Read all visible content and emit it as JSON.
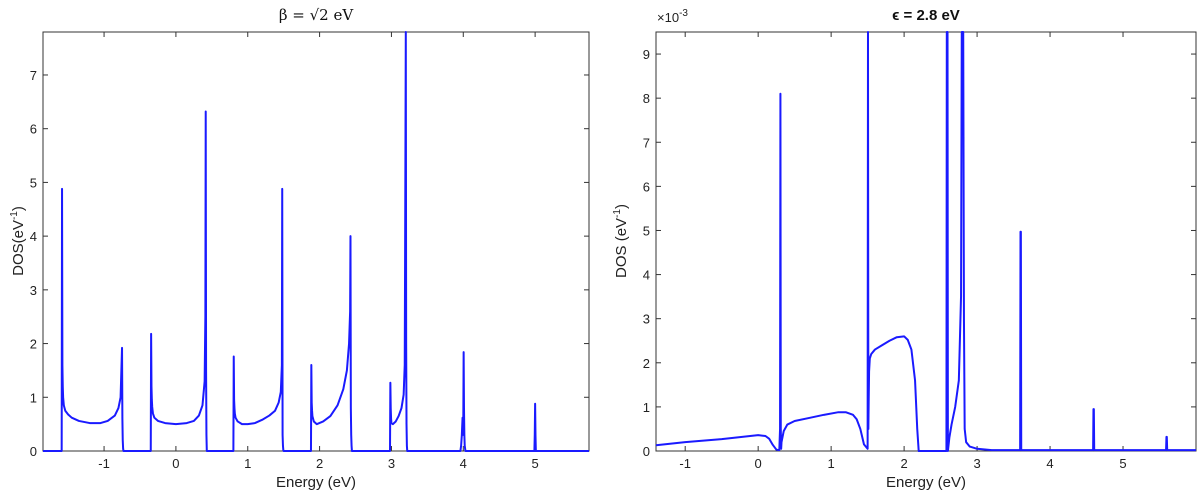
{
  "chart_data": [
    {
      "type": "line",
      "title": "β = √2 eV",
      "xlabel": "Energy (eV)",
      "ylabel_main": "DOS(eV",
      "ylabel_sup": "-1",
      "ylabel_end": ")",
      "xlim": [
        -1.85,
        5.75
      ],
      "ylim": [
        0,
        7.8
      ],
      "xticks": [
        -1,
        0,
        1,
        2,
        3,
        4,
        5
      ],
      "yticks": [
        0,
        1,
        2,
        3,
        4,
        5,
        6,
        7
      ],
      "color": "#1a1aff",
      "series": [
        {
          "x": [
            -1.85,
            -1.59,
            -1.585,
            -1.58,
            -1.575,
            -1.57,
            -1.56,
            -1.54,
            -1.5,
            -1.45,
            -1.35,
            -1.2,
            -1.05,
            -0.95,
            -0.85,
            -0.8,
            -0.77,
            -0.75,
            -0.745,
            -0.74,
            -0.735,
            -0.73,
            -0.35,
            -0.345,
            -0.34,
            -0.335,
            -0.33,
            -0.32,
            -0.3,
            -0.25,
            -0.15,
            0.0,
            0.15,
            0.25,
            0.32,
            0.37,
            0.4,
            0.41,
            0.415,
            0.42,
            0.425,
            0.43,
            0.8,
            0.805,
            0.81,
            0.815,
            0.82,
            0.83,
            0.86,
            0.92,
            1.0,
            1.1,
            1.2,
            1.3,
            1.38,
            1.43,
            1.46,
            1.475,
            1.48,
            1.485,
            1.49,
            1.495,
            1.5,
            1.88,
            1.885,
            1.89,
            1.895,
            1.9,
            1.92,
            1.96,
            2.05,
            2.15,
            2.25,
            2.33,
            2.38,
            2.41,
            2.425,
            2.43,
            2.435,
            2.44,
            2.445,
            2.45,
            2.98,
            2.985,
            2.99,
            2.995,
            3.0,
            3.02,
            3.06,
            3.1,
            3.14,
            3.17,
            3.185,
            3.19,
            3.2,
            3.205,
            3.21,
            3.215,
            3.22,
            3.96,
            3.97,
            3.98,
            3.99,
            3.995,
            4.0,
            4.005,
            4.01,
            4.015,
            4.02,
            4.03,
            4.99,
            4.995,
            5.0,
            5.005,
            5.01,
            5.75
          ],
          "y": [
            0,
            0,
            4.88,
            1.6,
            1.2,
            1.0,
            0.85,
            0.75,
            0.68,
            0.62,
            0.56,
            0.52,
            0.52,
            0.56,
            0.66,
            0.8,
            1.0,
            1.92,
            0.6,
            0.2,
            0.05,
            0,
            0,
            2.18,
            1.2,
            0.95,
            0.82,
            0.7,
            0.62,
            0.56,
            0.52,
            0.5,
            0.52,
            0.56,
            0.66,
            0.85,
            1.3,
            2.5,
            6.32,
            1.5,
            0.3,
            0,
            0,
            1.76,
            0.95,
            0.8,
            0.7,
            0.62,
            0.55,
            0.5,
            0.5,
            0.52,
            0.58,
            0.66,
            0.75,
            0.9,
            1.1,
            1.6,
            4.88,
            0.3,
            0.1,
            0.02,
            0,
            0,
            1.6,
            0.9,
            0.75,
            0.65,
            0.55,
            0.5,
            0.55,
            0.65,
            0.85,
            1.15,
            1.5,
            2.0,
            2.6,
            4.0,
            0.8,
            0.3,
            0.1,
            0,
            0,
            1.27,
            0.8,
            0.6,
            0.52,
            0.5,
            0.55,
            0.65,
            0.8,
            1.05,
            1.6,
            3.5,
            7.8,
            2.0,
            0.5,
            0.1,
            0,
            0,
            0.1,
            0.3,
            0.62,
            0.3,
            0.5,
            1.84,
            0.8,
            0.3,
            0.1,
            0,
            0,
            0.3,
            0.88,
            0.3,
            0,
            0
          ]
        }
      ]
    },
    {
      "type": "line",
      "title": "ϵ = 2.8 eV",
      "xlabel": "Energy (eV)",
      "ylabel_main": "DOS (eV",
      "ylabel_sup": "-1",
      "ylabel_end": ")",
      "scale_main": "×10",
      "scale_sup": "-3",
      "xlim": [
        -1.4,
        6.0
      ],
      "ylim": [
        0,
        9.5
      ],
      "xticks": [
        -1,
        0,
        1,
        2,
        3,
        4,
        5
      ],
      "yticks": [
        0,
        1,
        2,
        3,
        4,
        5,
        6,
        7,
        8,
        9
      ],
      "color": "#1a1aff",
      "series": [
        {
          "x": [
            -1.4,
            -1.0,
            -0.5,
            0.0,
            0.1,
            0.15,
            0.2,
            0.25,
            0.29,
            0.3,
            0.305,
            0.31,
            0.315,
            0.32,
            0.35,
            0.4,
            0.5,
            0.7,
            0.9,
            1.1,
            1.2,
            1.3,
            1.35,
            1.4,
            1.45,
            1.5,
            1.505,
            1.51,
            1.515,
            1.52,
            1.53,
            1.55,
            1.6,
            1.7,
            1.8,
            1.9,
            2.0,
            2.05,
            2.1,
            2.15,
            2.18,
            2.2,
            2.58,
            2.585,
            2.59,
            2.595,
            2.6,
            2.62,
            2.65,
            2.7,
            2.75,
            2.78,
            2.79,
            2.8,
            2.81,
            2.82,
            2.83,
            2.85,
            2.9,
            3.0,
            3.2,
            3.59,
            3.595,
            3.6,
            3.605,
            3.61,
            4.59,
            4.595,
            4.6,
            4.605,
            4.61,
            5.59,
            5.595,
            5.6,
            5.605,
            5.61,
            6.0
          ],
          "y": [
            0.13,
            0.2,
            0.27,
            0.36,
            0.34,
            0.28,
            0.14,
            0.03,
            0.02,
            0.5,
            8.1,
            0.5,
            0.05,
            0.2,
            0.45,
            0.6,
            0.68,
            0.75,
            0.82,
            0.88,
            0.88,
            0.82,
            0.72,
            0.5,
            0.15,
            0.05,
            9.5,
            0.5,
            1.2,
            1.8,
            2.1,
            2.2,
            2.3,
            2.4,
            2.5,
            2.58,
            2.6,
            2.52,
            2.3,
            1.6,
            0.5,
            0,
            0,
            9.5,
            9.5,
            9.5,
            0,
            0.3,
            0.6,
            1.0,
            1.6,
            3.5,
            9.5,
            9.5,
            9.5,
            3.0,
            0.5,
            0.2,
            0.1,
            0.05,
            0.02,
            0.02,
            4.97,
            4.97,
            0.02,
            0.02,
            0.02,
            0.95,
            0.95,
            0.02,
            0.02,
            0.02,
            0.32,
            0.32,
            0.02,
            0.02,
            0.02
          ]
        }
      ]
    }
  ]
}
